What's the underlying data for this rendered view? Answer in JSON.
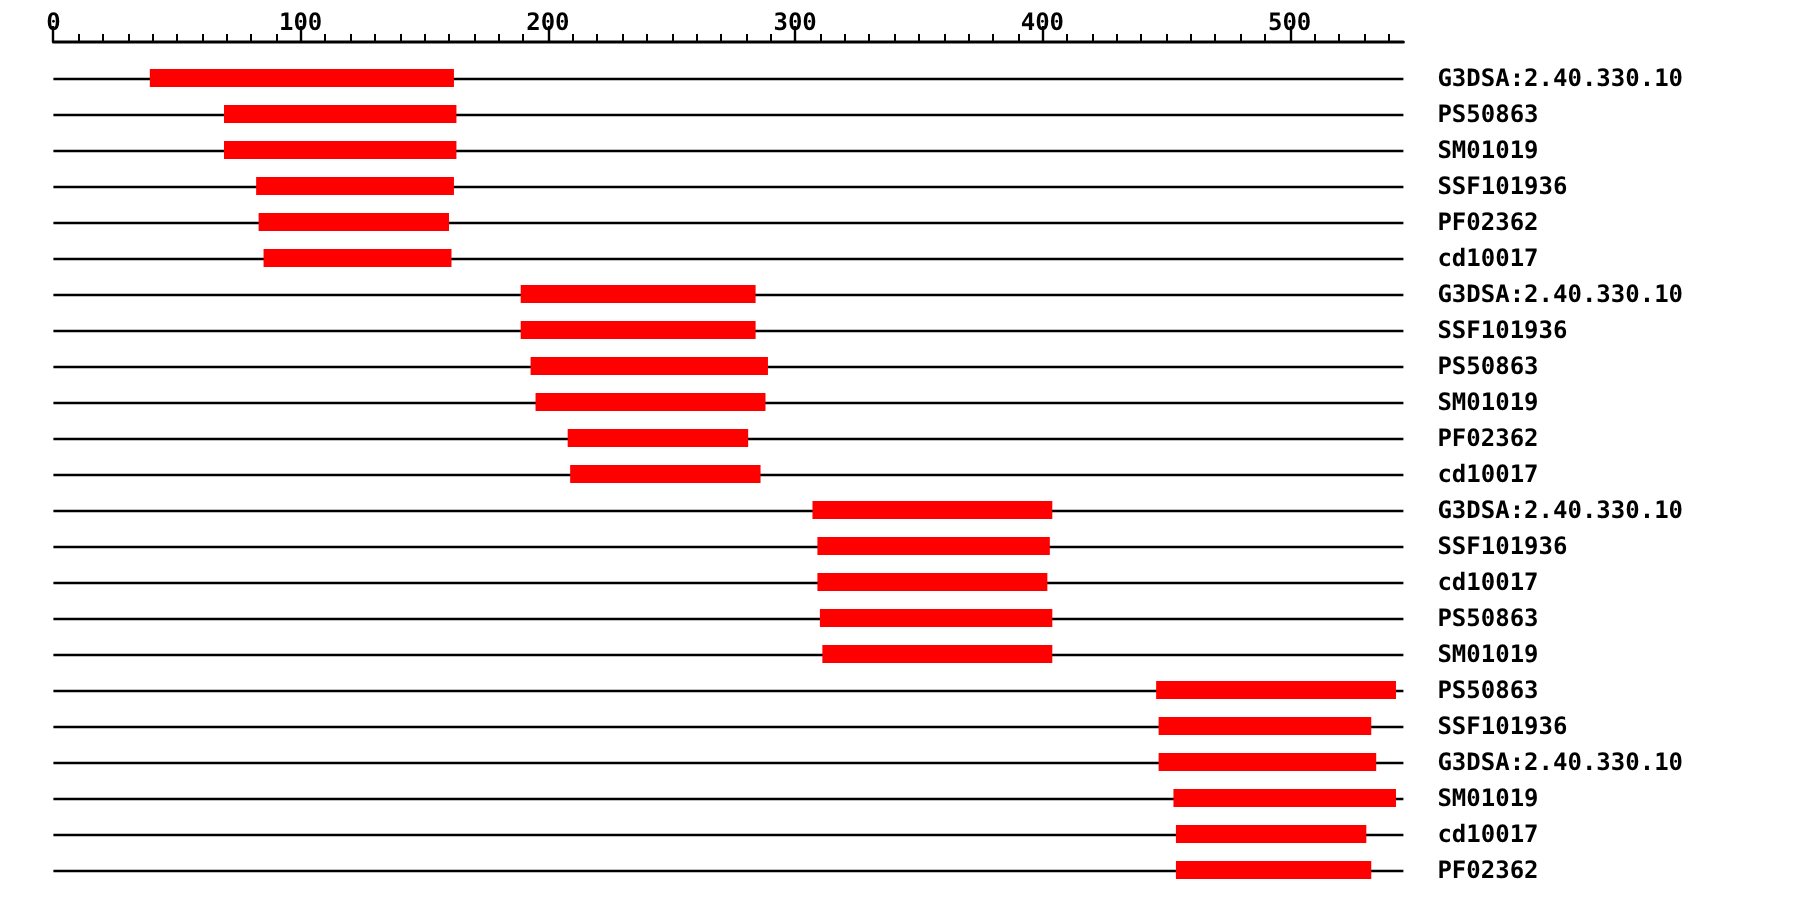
{
  "chart_data": {
    "type": "bar",
    "orientation": "horizontal",
    "color": "#ff0000",
    "grid": "y",
    "categories": [
      "G3DSA:2.40.330.10",
      "PS50863",
      "SM01019",
      "SSF101936",
      "PF02362",
      "cd10017",
      "G3DSA:2.40.330.10",
      "SSF101936",
      "PS50863",
      "SM01019",
      "PF02362",
      "cd10017",
      "G3DSA:2.40.330.10",
      "SSF101936",
      "cd10017",
      "PS50863",
      "SM01019",
      "PS50863",
      "SSF101936",
      "G3DSA:2.40.330.10",
      "SM01019",
      "cd10017",
      "PF02362"
    ],
    "base": [
      39,
      69,
      69,
      82,
      83,
      85,
      189,
      189,
      193,
      195,
      208,
      209,
      307,
      309,
      309,
      310,
      311,
      446,
      447,
      447,
      453,
      454,
      454
    ],
    "values": [
      123,
      94,
      94,
      80,
      77,
      76,
      95,
      95,
      96,
      93,
      73,
      77,
      97,
      94,
      93,
      94,
      93,
      97,
      86,
      88,
      90,
      77,
      79
    ],
    "xlim": [
      0,
      546
    ],
    "xticks": [
      0,
      {
        "value": 10,
        "label": null
      },
      {
        "value": 20,
        "label": null
      },
      {
        "value": 30,
        "label": null
      },
      {
        "value": 40,
        "label": null
      },
      {
        "value": 50,
        "label": null
      },
      {
        "value": 60,
        "label": null
      },
      {
        "value": 70,
        "label": null
      },
      {
        "value": 80,
        "label": null
      },
      {
        "value": 90,
        "label": null
      },
      100,
      {
        "value": 110,
        "label": null
      },
      {
        "value": 120,
        "label": null
      },
      {
        "value": 130,
        "label": null
      },
      {
        "value": 140,
        "label": null
      },
      {
        "value": 150,
        "label": null
      },
      {
        "value": 160,
        "label": null
      },
      {
        "value": 170,
        "label": null
      },
      {
        "value": 180,
        "label": null
      },
      {
        "value": 190,
        "label": null
      },
      200,
      {
        "value": 210,
        "label": null
      },
      {
        "value": 220,
        "label": null
      },
      {
        "value": 230,
        "label": null
      },
      {
        "value": 240,
        "label": null
      },
      {
        "value": 250,
        "label": null
      },
      {
        "value": 260,
        "label": null
      },
      {
        "value": 270,
        "label": null
      },
      {
        "value": 280,
        "label": null
      },
      {
        "value": 290,
        "label": null
      },
      300,
      {
        "value": 310,
        "label": null
      },
      {
        "value": 320,
        "label": null
      },
      {
        "value": 330,
        "label": null
      },
      {
        "value": 340,
        "label": null
      },
      {
        "value": 350,
        "label": null
      },
      {
        "value": 360,
        "label": null
      },
      {
        "value": 370,
        "label": null
      },
      {
        "value": 380,
        "label": null
      },
      {
        "value": 390,
        "label": null
      },
      400,
      {
        "value": 410,
        "label": null
      },
      {
        "value": 420,
        "label": null
      },
      {
        "value": 430,
        "label": null
      },
      {
        "value": 440,
        "label": null
      },
      {
        "value": 450,
        "label": null
      },
      {
        "value": 460,
        "label": null
      },
      {
        "value": 470,
        "label": null
      },
      {
        "value": 480,
        "label": null
      },
      {
        "value": 490,
        "label": null
      },
      500,
      {
        "value": 510,
        "label": null
      },
      {
        "value": 520,
        "label": null
      },
      {
        "value": 530,
        "label": null
      },
      {
        "value": 540,
        "label": null
      }
    ]
  }
}
